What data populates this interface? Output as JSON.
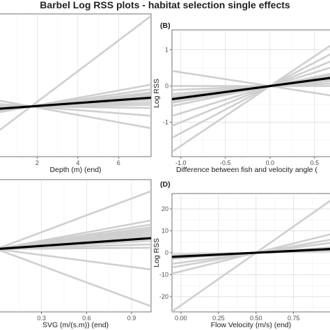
{
  "title": "Barbel Log RSS plots - habitat selection single effects",
  "colors": {
    "individual": "#cfcfcf",
    "population": "#000000",
    "grid": "#d9d9d9"
  },
  "chart_data": [
    {
      "type": "line",
      "tag": "",
      "xlabel": "Depth (m) (end)",
      "ylabel": "",
      "xlim": [
        0,
        7.6
      ],
      "ylim": [
        -0.95,
        1.75
      ],
      "xticks": [
        2,
        4,
        6
      ],
      "xtick_labels": [
        "2",
        "4",
        "6"
      ],
      "yticks": [],
      "ytick_labels": [],
      "reference_x": 1.7,
      "population_slope": 0.028,
      "individual_slopes": [
        0.29,
        0.07,
        0.055,
        0.045,
        0.04,
        0.035,
        0.03,
        0.025,
        0.02,
        0.012,
        0.005,
        -0.005,
        -0.03,
        -0.07
      ]
    },
    {
      "type": "line",
      "tag": "(B)",
      "xlabel": "Difference between fish and velocity angle (",
      "ylabel": "Log RSS",
      "xlim": [
        -1.1,
        0.72
      ],
      "ylim": [
        -1.95,
        1.55
      ],
      "xticks": [
        -1.0,
        -0.5,
        0.0,
        0.5
      ],
      "xtick_labels": [
        "-1.0",
        "-0.5",
        "0.0",
        "0.5"
      ],
      "yticks": [
        -1,
        0,
        1
      ],
      "ytick_labels": [
        "-1",
        "0",
        "1"
      ],
      "reference_x": 0.0,
      "population_slope": 0.33,
      "individual_slopes": [
        1.65,
        1.3,
        1.0,
        0.75,
        0.5,
        0.42,
        0.38,
        0.34,
        0.3,
        0.26,
        0.2,
        0.1,
        0.0,
        -0.38
      ]
    },
    {
      "type": "line",
      "tag": "",
      "xlabel": "SVG (m/(s.m)) (end)",
      "ylabel": "",
      "xlim": [
        0.0,
        1.03
      ],
      "ylim": [
        -0.95,
        1.05
      ],
      "xticks": [
        0.3,
        0.6,
        0.9
      ],
      "xtick_labels": [
        "0.3",
        "0.6",
        "0.9"
      ],
      "yticks": [],
      "ytick_labels": [],
      "reference_x": 0.0,
      "population_slope": 0.16,
      "individual_slopes": [
        0.85,
        0.42,
        0.36,
        0.32,
        0.29,
        0.26,
        0.23,
        0.2,
        0.17,
        0.12,
        0.07,
        0.02,
        -0.3,
        -0.84
      ]
    },
    {
      "type": "line",
      "tag": "(D)",
      "xlabel": "Flow Velocity (m/s) (end)",
      "ylabel": "Log RSS",
      "xlim": [
        -0.06,
        1.02
      ],
      "ylim": [
        -27,
        27
      ],
      "xticks": [
        0.0,
        0.25,
        0.5,
        0.75
      ],
      "xtick_labels": [
        "0.00",
        "0.25",
        "0.50",
        "0.75"
      ],
      "yticks": [
        -20,
        -10,
        0,
        10,
        20
      ],
      "ytick_labels": [
        "-20",
        "-10",
        "0",
        "10",
        "20"
      ],
      "reference_x": 0.5,
      "population_slope": 3.4,
      "individual_slopes": [
        48,
        17,
        12,
        9,
        5,
        3,
        1.5
      ]
    }
  ]
}
